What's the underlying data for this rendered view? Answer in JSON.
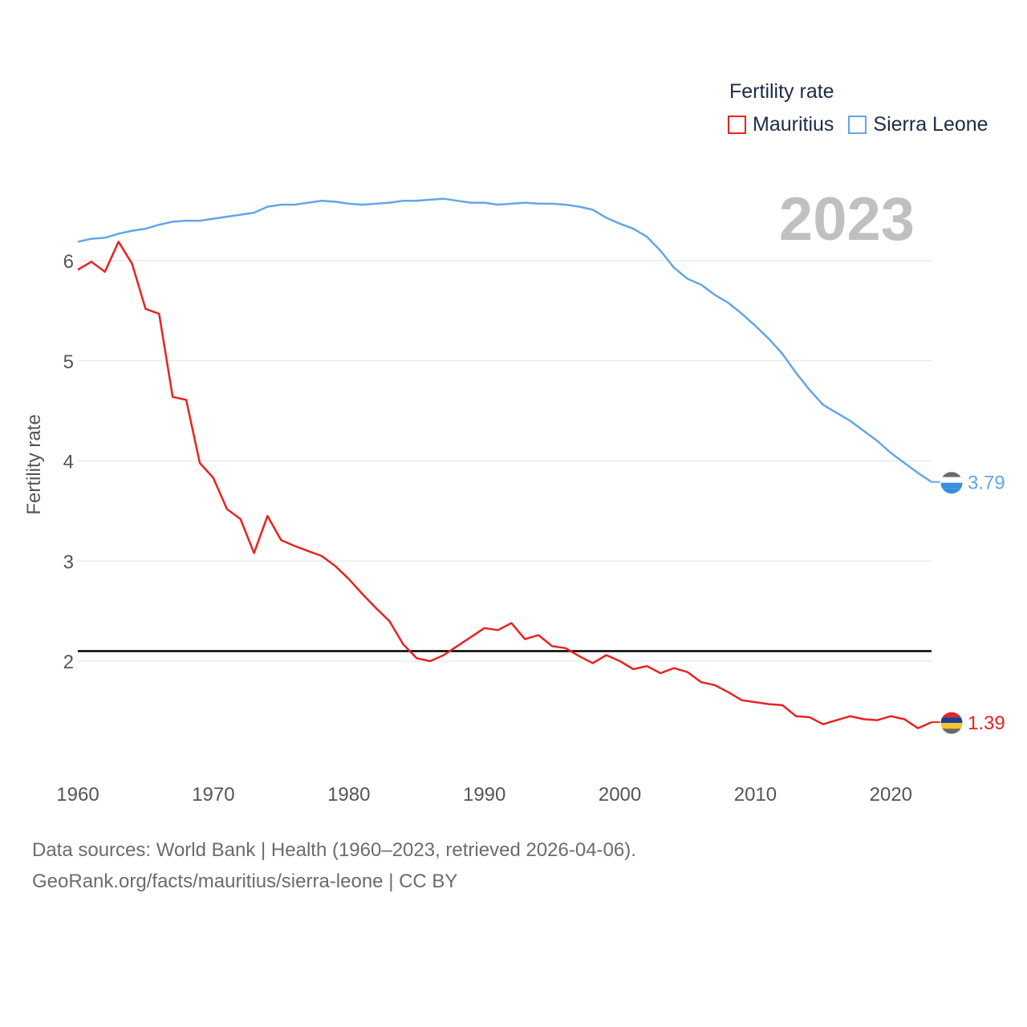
{
  "legend": {
    "title": "Fertility rate",
    "items": [
      {
        "label": "Mauritius",
        "color": "#e8231f"
      },
      {
        "label": "Sierra Leone",
        "color": "#62a6e8"
      }
    ]
  },
  "year_label": "2023",
  "footer": {
    "line1": "Data sources: World Bank | Health (1960–2023, retrieved 2026-04-06).",
    "line2": "GeoRank.org/facts/mauritius/sierra-leone | CC BY"
  },
  "chart_data": {
    "type": "line",
    "ylabel": "Fertility rate",
    "xlabel": "",
    "xlim": [
      1960,
      2023
    ],
    "ylim": [
      1.0,
      6.5
    ],
    "yticks": [
      2,
      3,
      4,
      5,
      6
    ],
    "xticks": [
      1960,
      1970,
      1980,
      1990,
      2000,
      2010,
      2020
    ],
    "reference_line": {
      "y": 2.1,
      "color": "#000000"
    },
    "x": [
      1960,
      1961,
      1962,
      1963,
      1964,
      1965,
      1966,
      1967,
      1968,
      1969,
      1970,
      1971,
      1972,
      1973,
      1974,
      1975,
      1976,
      1977,
      1978,
      1979,
      1980,
      1981,
      1982,
      1983,
      1984,
      1985,
      1986,
      1987,
      1988,
      1989,
      1990,
      1991,
      1992,
      1993,
      1994,
      1995,
      1996,
      1997,
      1998,
      1999,
      2000,
      2001,
      2002,
      2003,
      2004,
      2005,
      2006,
      2007,
      2008,
      2009,
      2010,
      2011,
      2012,
      2013,
      2014,
      2015,
      2016,
      2017,
      2018,
      2019,
      2020,
      2021,
      2022,
      2023
    ],
    "series": [
      {
        "name": "Mauritius",
        "color": "#e8231f",
        "end_label": "1.39",
        "values": [
          5.91,
          5.99,
          5.89,
          6.19,
          5.97,
          5.52,
          5.47,
          4.64,
          4.61,
          3.98,
          3.83,
          3.52,
          3.42,
          3.08,
          3.45,
          3.21,
          3.15,
          3.1,
          3.05,
          2.95,
          2.82,
          2.67,
          2.53,
          2.4,
          2.17,
          2.03,
          2.0,
          2.06,
          2.15,
          2.24,
          2.33,
          2.31,
          2.38,
          2.22,
          2.26,
          2.15,
          2.13,
          2.05,
          1.98,
          2.06,
          2.0,
          1.92,
          1.95,
          1.88,
          1.93,
          1.89,
          1.79,
          1.76,
          1.69,
          1.61,
          1.59,
          1.57,
          1.56,
          1.45,
          1.44,
          1.37,
          1.41,
          1.45,
          1.42,
          1.41,
          1.45,
          1.42,
          1.33,
          1.39
        ]
      },
      {
        "name": "Sierra Leone",
        "color": "#62a6e8",
        "end_label": "3.79",
        "values": [
          6.19,
          6.22,
          6.23,
          6.27,
          6.3,
          6.32,
          6.36,
          6.39,
          6.4,
          6.4,
          6.42,
          6.44,
          6.46,
          6.48,
          6.54,
          6.56,
          6.56,
          6.58,
          6.6,
          6.59,
          6.57,
          6.56,
          6.57,
          6.58,
          6.6,
          6.6,
          6.61,
          6.62,
          6.6,
          6.58,
          6.58,
          6.56,
          6.57,
          6.58,
          6.57,
          6.57,
          6.56,
          6.54,
          6.51,
          6.43,
          6.37,
          6.32,
          6.24,
          6.1,
          5.93,
          5.82,
          5.76,
          5.66,
          5.58,
          5.47,
          5.35,
          5.22,
          5.07,
          4.88,
          4.71,
          4.56,
          4.48,
          4.4,
          4.3,
          4.2,
          4.08,
          3.98,
          3.88,
          3.79
        ]
      }
    ]
  }
}
